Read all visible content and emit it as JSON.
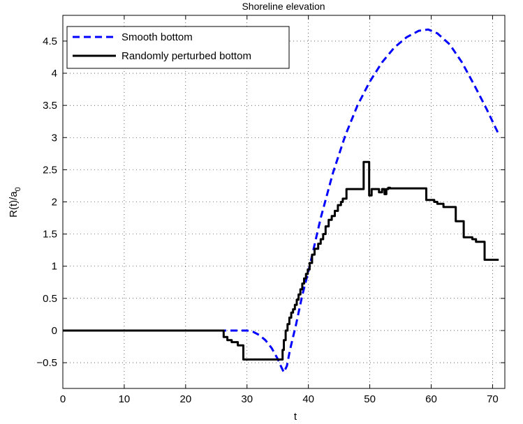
{
  "chart_data": {
    "type": "line",
    "title": "Shoreline elevation",
    "xlabel": "t",
    "ylabel": "R(t)/a",
    "ylabel_subscript": "0",
    "xlim": [
      0,
      72
    ],
    "ylim": [
      -0.9,
      4.9
    ],
    "xticks": [
      0,
      10,
      20,
      30,
      40,
      50,
      60,
      70
    ],
    "xtick_labels": [
      "0",
      "10",
      "20",
      "30",
      "40",
      "50",
      "60",
      "70"
    ],
    "yticks": [
      -0.5,
      0,
      0.5,
      1,
      1.5,
      2,
      2.5,
      3,
      3.5,
      4,
      4.5
    ],
    "ytick_labels": [
      "−0.5",
      "0",
      "0.5",
      "1",
      "1.5",
      "2",
      "2.5",
      "3",
      "3.5",
      "4",
      "4.5"
    ],
    "grid": true,
    "legend_position": "top-left",
    "series": [
      {
        "name": "Smooth bottom",
        "color": "#0000ff",
        "style": "dashed",
        "x": [
          0,
          26,
          28,
          30,
          31,
          32,
          33,
          34,
          35,
          35.5,
          36,
          36.5,
          37,
          38,
          39,
          40,
          42,
          44,
          46,
          48,
          50,
          52,
          54,
          56,
          58,
          59.5,
          61,
          63,
          65,
          67,
          69,
          70,
          71
        ],
        "y": [
          0,
          0,
          0,
          0,
          -0.02,
          -0.07,
          -0.15,
          -0.27,
          -0.44,
          -0.55,
          -0.65,
          -0.55,
          -0.3,
          0.1,
          0.55,
          0.92,
          1.75,
          2.45,
          3.03,
          3.5,
          3.87,
          4.17,
          4.4,
          4.56,
          4.66,
          4.68,
          4.62,
          4.45,
          4.17,
          3.82,
          3.45,
          3.25,
          3.05
        ]
      },
      {
        "name": "Randomly perturbed bottom",
        "color": "#000000",
        "style": "solid",
        "x": [
          0,
          26.2,
          26.2,
          26.8,
          26.8,
          27.5,
          27.5,
          28.5,
          28.5,
          29.4,
          29.4,
          35.8,
          35.8,
          36.0,
          36.0,
          36.3,
          36.3,
          36.6,
          36.6,
          36.9,
          36.9,
          37.2,
          37.2,
          37.5,
          37.5,
          37.8,
          37.8,
          38.1,
          38.1,
          38.4,
          38.4,
          38.7,
          38.7,
          39.0,
          39.0,
          39.3,
          39.3,
          39.6,
          39.6,
          39.9,
          39.9,
          40.2,
          40.2,
          40.6,
          40.6,
          41.0,
          41.0,
          41.6,
          41.6,
          42.0,
          42.0,
          42.4,
          42.4,
          42.8,
          42.8,
          43.3,
          43.3,
          43.8,
          43.8,
          44.3,
          44.3,
          44.8,
          44.8,
          45.3,
          45.3,
          45.6,
          45.6,
          46.2,
          46.2,
          48.4,
          48.4,
          49.0,
          49.0,
          49.9,
          49.9,
          50.3,
          50.3,
          51.5,
          51.5,
          52.0,
          52.0,
          52.4,
          52.4,
          52.7,
          52.7,
          53.0,
          53.0,
          53.3,
          53.3,
          59.2,
          59.2,
          60.5,
          60.5,
          61.0,
          61.0,
          62.0,
          62.0,
          64.0,
          64.0,
          65.3,
          65.3,
          66.7,
          66.7,
          67.3,
          67.3,
          68.7,
          68.7,
          71.0
        ],
        "y": [
          0,
          0,
          -0.1,
          -0.1,
          -0.15,
          -0.15,
          -0.18,
          -0.18,
          -0.23,
          -0.23,
          -0.45,
          -0.45,
          -0.3,
          -0.3,
          -0.15,
          -0.15,
          0.0,
          0.0,
          0.1,
          0.1,
          0.2,
          0.2,
          0.28,
          0.28,
          0.33,
          0.33,
          0.4,
          0.4,
          0.48,
          0.48,
          0.56,
          0.56,
          0.64,
          0.64,
          0.73,
          0.73,
          0.81,
          0.81,
          0.88,
          0.88,
          0.95,
          0.95,
          1.05,
          1.05,
          1.18,
          1.18,
          1.27,
          1.27,
          1.35,
          1.35,
          1.42,
          1.42,
          1.5,
          1.5,
          1.62,
          1.62,
          1.72,
          1.72,
          1.78,
          1.78,
          1.86,
          1.86,
          1.95,
          1.95,
          2.0,
          2.0,
          2.05,
          2.05,
          2.2,
          2.2,
          2.2,
          2.2,
          2.62,
          2.62,
          2.1,
          2.1,
          2.2,
          2.2,
          2.15,
          2.15,
          2.2,
          2.2,
          2.12,
          2.12,
          2.2,
          2.2,
          2.22,
          2.22,
          2.21,
          2.21,
          2.03,
          2.03,
          2.0,
          2.0,
          1.97,
          1.97,
          1.92,
          1.92,
          1.7,
          1.7,
          1.45,
          1.45,
          1.42,
          1.42,
          1.38,
          1.38,
          1.1,
          1.1
        ]
      }
    ]
  }
}
